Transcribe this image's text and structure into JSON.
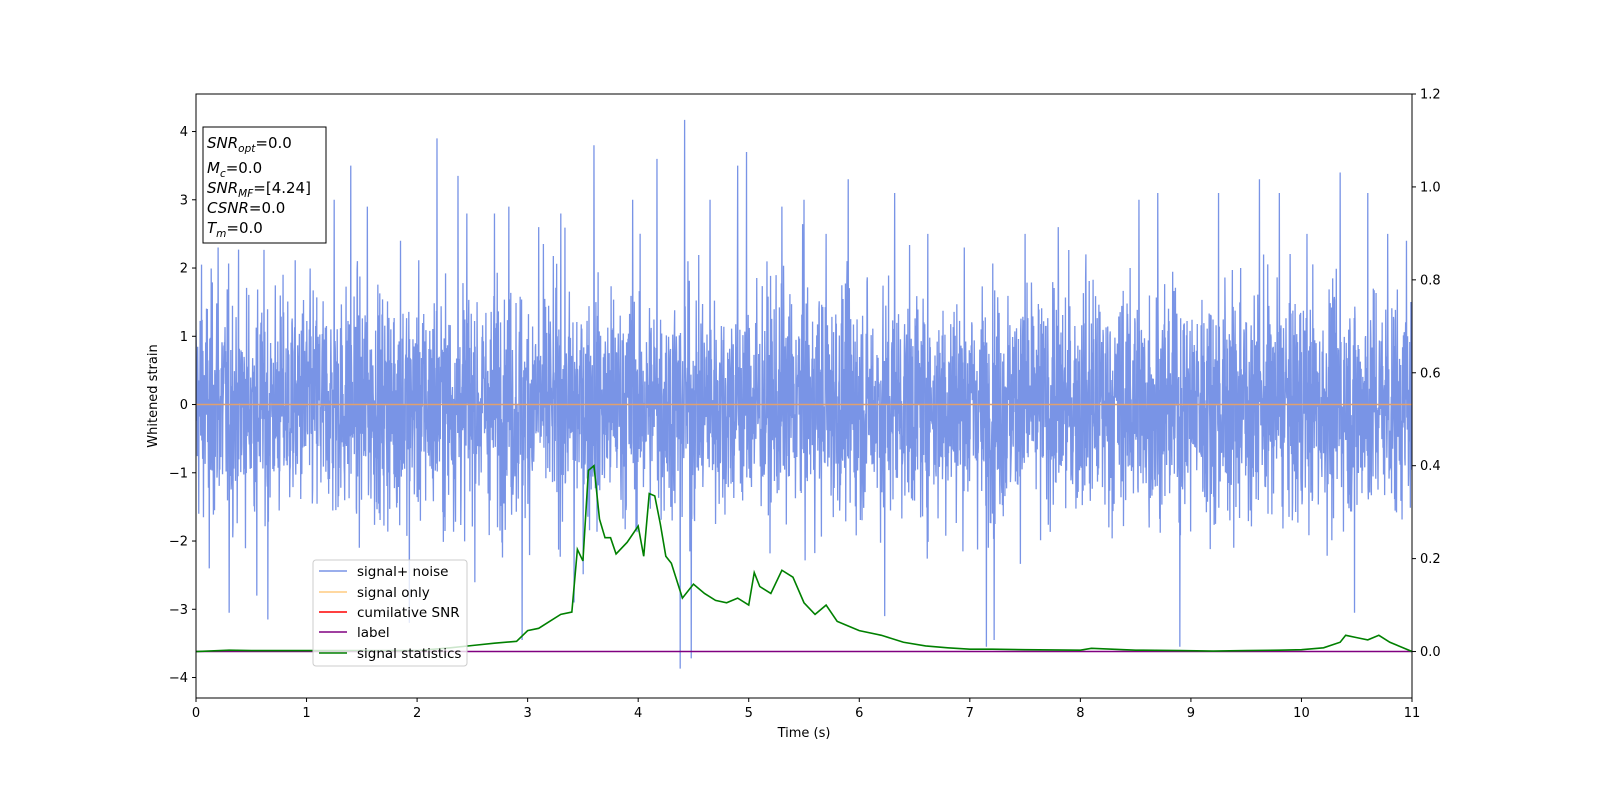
{
  "chart_data": {
    "type": "line",
    "xlabel": "Time (s)",
    "ylabel": "Whitened strain",
    "xlim": [
      0,
      11
    ],
    "ylim": [
      -4.3,
      4.55
    ],
    "y2lim": [
      -0.1,
      1.2
    ],
    "x_ticks": [
      "0",
      "1",
      "2",
      "3",
      "4",
      "5",
      "6",
      "7",
      "8",
      "9",
      "10",
      "11"
    ],
    "y_ticks": [
      "−4",
      "−3",
      "−2",
      "−1",
      "0",
      "1",
      "2",
      "3",
      "4"
    ],
    "y2_ticks": [
      "0.0",
      "0.2",
      "0.4",
      "0.6",
      "0.8",
      "1.0",
      "1.2"
    ],
    "grid": false,
    "legend_position": "lower-left",
    "colors": {
      "signal_noise": "#7994e6",
      "signal_only": "#ffcc80",
      "cumulative_snr": "#ff0000",
      "label": "#800080",
      "signal_statistics": "#008000",
      "zero_line": "#e0a070"
    },
    "info_box": {
      "snr_opt": {
        "main": "SNR",
        "sub": "opt",
        "value": "=0.0"
      },
      "mc": {
        "main": "M",
        "sub": "c",
        "value": "=0.0"
      },
      "snr_mf": {
        "main": "SNR",
        "sub": "MF",
        "value": "=[4.24]"
      },
      "csnr": {
        "main": "CSNR",
        "value": "=0.0"
      },
      "tm": {
        "main": "T",
        "sub": "m",
        "value": "=0.0"
      }
    },
    "series": [
      {
        "name": "signal+ noise",
        "axis": "left",
        "style": "noise",
        "description_values": {
          "amplitude_typical": 1.5,
          "max": 4.17,
          "min": -3.87
        },
        "spikes": [
          [
            0.05,
            2.05
          ],
          [
            0.12,
            -2.4
          ],
          [
            0.2,
            2.3
          ],
          [
            0.3,
            -3.05
          ],
          [
            0.55,
            -2.8
          ],
          [
            0.65,
            -3.15
          ],
          [
            1.25,
            3.0
          ],
          [
            1.4,
            3.5
          ],
          [
            1.55,
            2.9
          ],
          [
            1.85,
            2.4
          ],
          [
            1.93,
            -3.2
          ],
          [
            2.18,
            3.9
          ],
          [
            2.37,
            3.35
          ],
          [
            2.45,
            2.8
          ],
          [
            2.7,
            2.8
          ],
          [
            2.83,
            2.9
          ],
          [
            2.95,
            -3.45
          ],
          [
            3.1,
            2.6
          ],
          [
            3.3,
            2.8
          ],
          [
            3.42,
            -2.9
          ],
          [
            3.6,
            3.8
          ],
          [
            3.95,
            3.0
          ],
          [
            4.17,
            3.6
          ],
          [
            4.38,
            -3.87
          ],
          [
            4.42,
            4.17
          ],
          [
            4.48,
            -3.72
          ],
          [
            4.65,
            3.0
          ],
          [
            4.9,
            3.5
          ],
          [
            4.98,
            3.7
          ],
          [
            5.3,
            2.9
          ],
          [
            5.5,
            3.0
          ],
          [
            5.7,
            2.5
          ],
          [
            5.9,
            3.3
          ],
          [
            6.23,
            -3.1
          ],
          [
            6.32,
            3.1
          ],
          [
            6.62,
            2.5
          ],
          [
            6.95,
            2.3
          ],
          [
            7.15,
            -3.55
          ],
          [
            7.22,
            -3.45
          ],
          [
            7.5,
            2.5
          ],
          [
            7.8,
            2.6
          ],
          [
            8.05,
            2.2
          ],
          [
            8.45,
            2.0
          ],
          [
            8.53,
            3.0
          ],
          [
            8.7,
            3.1
          ],
          [
            8.9,
            -3.55
          ],
          [
            9.25,
            3.1
          ],
          [
            9.45,
            2.0
          ],
          [
            9.62,
            3.3
          ],
          [
            9.8,
            3.1
          ],
          [
            10.05,
            2.5
          ],
          [
            10.35,
            3.4
          ],
          [
            10.48,
            -3.05
          ],
          [
            10.6,
            3.1
          ],
          [
            10.78,
            2.5
          ],
          [
            10.95,
            2.4
          ]
        ]
      },
      {
        "name": "signal only",
        "axis": "left",
        "x": [
          0,
          11
        ],
        "y": [
          0,
          0
        ]
      },
      {
        "name": "cumilative SNR",
        "axis": "right",
        "x": [],
        "y": []
      },
      {
        "name": "label",
        "axis": "right",
        "x": [
          0,
          11
        ],
        "y": [
          0,
          0
        ]
      },
      {
        "name": "signal statistics",
        "axis": "right",
        "x": [
          0,
          0.3,
          0.5,
          1.0,
          1.5,
          2.0,
          2.3,
          2.5,
          2.7,
          2.9,
          3.0,
          3.1,
          3.2,
          3.3,
          3.4,
          3.45,
          3.5,
          3.55,
          3.6,
          3.65,
          3.7,
          3.75,
          3.8,
          3.9,
          4.0,
          4.05,
          4.1,
          4.15,
          4.2,
          4.25,
          4.3,
          4.4,
          4.5,
          4.6,
          4.7,
          4.8,
          4.9,
          5.0,
          5.05,
          5.1,
          5.2,
          5.3,
          5.4,
          5.5,
          5.6,
          5.7,
          5.8,
          5.9,
          6.0,
          6.2,
          6.4,
          6.6,
          6.8,
          7.0,
          7.2,
          7.5,
          8.0,
          8.1,
          8.5,
          8.9,
          9.2,
          9.5,
          9.8,
          10.0,
          10.2,
          10.35,
          10.4,
          10.5,
          10.6,
          10.7,
          10.8,
          11.0
        ],
        "y": [
          0.0,
          0.003,
          0.002,
          0.002,
          0.002,
          0.002,
          0.008,
          0.013,
          0.018,
          0.022,
          0.045,
          0.05,
          0.065,
          0.08,
          0.085,
          0.22,
          0.195,
          0.39,
          0.4,
          0.285,
          0.245,
          0.245,
          0.21,
          0.235,
          0.27,
          0.205,
          0.34,
          0.335,
          0.275,
          0.205,
          0.19,
          0.115,
          0.145,
          0.125,
          0.11,
          0.105,
          0.115,
          0.1,
          0.17,
          0.14,
          0.125,
          0.175,
          0.16,
          0.105,
          0.08,
          0.1,
          0.065,
          0.055,
          0.045,
          0.035,
          0.02,
          0.012,
          0.008,
          0.005,
          0.005,
          0.004,
          0.003,
          0.007,
          0.003,
          0.002,
          0.001,
          0.002,
          0.003,
          0.004,
          0.008,
          0.02,
          0.035,
          0.03,
          0.025,
          0.035,
          0.02,
          0.0
        ]
      }
    ]
  }
}
